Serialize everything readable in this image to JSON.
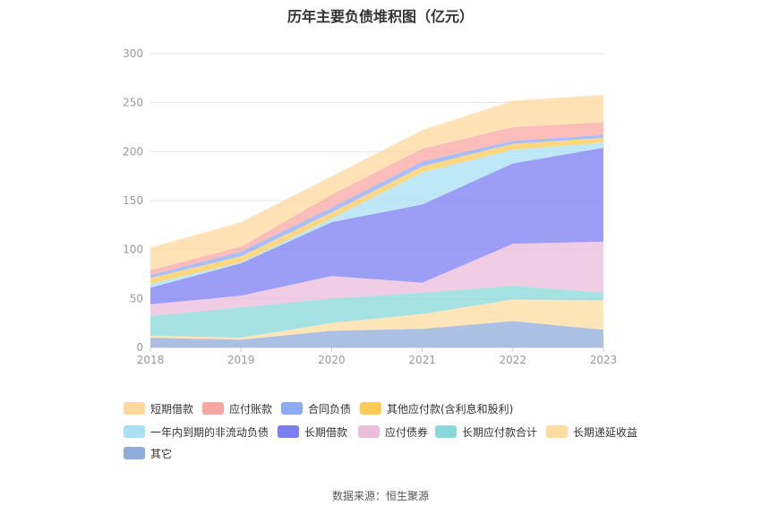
{
  "chart_data": {
    "type": "area",
    "stacked": true,
    "title": "历年主要负债堆积图（亿元）",
    "source": "数据来源：恒生聚源",
    "x": [
      "2018",
      "2019",
      "2020",
      "2021",
      "2022",
      "2023"
    ],
    "ylim": [
      0,
      300
    ],
    "yticks": [
      0,
      50,
      100,
      150,
      200,
      250,
      300
    ],
    "grid": true,
    "legend_position": "bottom",
    "series": [
      {
        "name": "其它",
        "color": "#8fabd8",
        "values": [
          10,
          8,
          17,
          19,
          27,
          18
        ]
      },
      {
        "name": "长期递延收益",
        "color": "#ffdca0",
        "values": [
          2,
          2,
          8,
          15,
          22,
          30
        ]
      },
      {
        "name": "长期应付款合计",
        "color": "#8ad8d8",
        "values": [
          20,
          31,
          25,
          22,
          14,
          8
        ]
      },
      {
        "name": "应付债券",
        "color": "#ebbcdb",
        "values": [
          12,
          12,
          23,
          10,
          43,
          52
        ]
      },
      {
        "name": "长期借款",
        "color": "#7b7ef3",
        "values": [
          17,
          33,
          55,
          80,
          82,
          96
        ]
      },
      {
        "name": "一年内到期的非流动负债",
        "color": "#a8e0f5",
        "values": [
          4,
          1,
          4,
          33,
          14,
          5
        ]
      },
      {
        "name": "其他应付款(含利息和股利)",
        "color": "#fdcb56",
        "values": [
          6,
          6,
          6,
          6,
          6,
          5
        ]
      },
      {
        "name": "合同负债",
        "color": "#8daaf7",
        "values": [
          3,
          5,
          5,
          5,
          3,
          3
        ]
      },
      {
        "name": "应付账款",
        "color": "#f8a7a2",
        "values": [
          5,
          5,
          13,
          13,
          14,
          13
        ]
      },
      {
        "name": "短期借款",
        "color": "#ffd89e",
        "values": [
          23,
          25,
          19,
          19,
          27,
          28
        ]
      }
    ]
  },
  "legend": [
    {
      "label": "短期借款",
      "color": "#ffd89e"
    },
    {
      "label": "应付账款",
      "color": "#f8a7a2"
    },
    {
      "label": "合同负债",
      "color": "#8daaf7"
    },
    {
      "label": "其他应付款(含利息和股利)",
      "color": "#fdcb56"
    },
    {
      "label": "一年内到期的非流动负债",
      "color": "#a8e0f5"
    },
    {
      "label": "长期借款",
      "color": "#7b7ef3"
    },
    {
      "label": "应付债券",
      "color": "#ebbcdb"
    },
    {
      "label": "长期应付款合计",
      "color": "#8ad8d8"
    },
    {
      "label": "长期递延收益",
      "color": "#ffdca0"
    },
    {
      "label": "其它",
      "color": "#8fabd8"
    }
  ]
}
